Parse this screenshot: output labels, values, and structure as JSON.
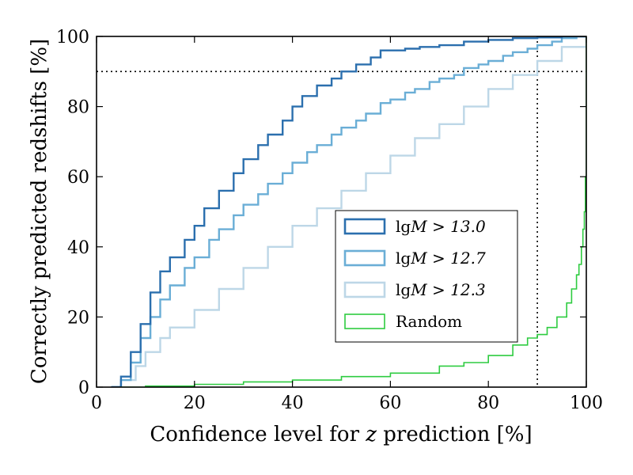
{
  "chart_data": {
    "type": "line",
    "step": true,
    "xlabel_prefix": "Confidence level for ",
    "xlabel_var": "z",
    "xlabel_suffix": " prediction [%]",
    "ylabel": "Correctly predicted redshifts [%]",
    "xlim": [
      0,
      100
    ],
    "ylim": [
      0,
      100
    ],
    "x_ticks": [
      0,
      20,
      40,
      60,
      80,
      100
    ],
    "y_ticks": [
      0,
      20,
      40,
      60,
      80,
      100
    ],
    "reference_lines": {
      "x": 90,
      "y": 90,
      "style": "dotted"
    },
    "legend_position": "center-right",
    "series": [
      {
        "name": "lgM > 13.0",
        "label_prefix": "lg",
        "label_math": "M > 13.0",
        "color": "#2b6fae",
        "x": [
          3,
          5,
          7,
          9,
          11,
          13,
          15,
          18,
          20,
          22,
          25,
          28,
          30,
          33,
          35,
          38,
          40,
          42,
          45,
          48,
          50,
          53,
          56,
          58,
          60,
          63,
          66,
          70,
          75,
          80,
          85,
          90,
          95,
          100
        ],
        "y": [
          0,
          3,
          10,
          18,
          27,
          33,
          37,
          42,
          46,
          51,
          56,
          61,
          65,
          69,
          72,
          76,
          80,
          83,
          86,
          88,
          90,
          92,
          94,
          96,
          96,
          96.5,
          97,
          97.5,
          98.5,
          99,
          99.5,
          99.7,
          100,
          100
        ]
      },
      {
        "name": "lgM > 12.7",
        "label_prefix": "lg",
        "label_math": "M > 12.7",
        "color": "#6aaed6",
        "x": [
          3,
          5,
          7,
          9,
          11,
          13,
          15,
          18,
          20,
          23,
          25,
          28,
          30,
          33,
          35,
          38,
          40,
          43,
          45,
          48,
          50,
          53,
          55,
          58,
          60,
          63,
          65,
          68,
          70,
          73,
          75,
          78,
          80,
          83,
          85,
          88,
          90,
          93,
          95,
          98,
          100
        ],
        "y": [
          0,
          2,
          7,
          14,
          20,
          25,
          29,
          34,
          37,
          42,
          45,
          49,
          52,
          55,
          58,
          61,
          64,
          67,
          69,
          72,
          74,
          76,
          78,
          81,
          82,
          84,
          85,
          87,
          88,
          89,
          91,
          92,
          93,
          94.5,
          95.5,
          96.5,
          97.5,
          98.5,
          99.5,
          100,
          100
        ]
      },
      {
        "name": "lgM > 12.3",
        "label_prefix": "lg",
        "label_math": "M > 12.3",
        "color": "#bdd7e7",
        "x": [
          3,
          5,
          8,
          10,
          13,
          15,
          20,
          25,
          30,
          35,
          40,
          45,
          50,
          55,
          60,
          65,
          70,
          75,
          80,
          85,
          90,
          95,
          100
        ],
        "y": [
          0,
          2,
          6,
          10,
          14,
          17,
          22,
          28,
          34,
          40,
          46,
          51,
          56,
          61,
          66,
          71,
          75,
          80,
          85,
          89,
          93,
          97,
          100
        ]
      },
      {
        "name": "Random",
        "label_prefix": "Random",
        "label_math": "",
        "color": "#2ecc40",
        "x": [
          5,
          10,
          20,
          30,
          40,
          50,
          60,
          70,
          75,
          80,
          85,
          88,
          90,
          92,
          94,
          96,
          97,
          98,
          98.5,
          99,
          99.3,
          99.6,
          99.8,
          100
        ],
        "y": [
          0,
          0.3,
          0.8,
          1.5,
          2,
          3,
          4,
          6,
          7,
          9,
          12,
          14,
          15,
          17,
          20,
          24,
          28,
          32,
          35,
          40,
          45,
          50,
          60,
          100
        ]
      }
    ]
  }
}
